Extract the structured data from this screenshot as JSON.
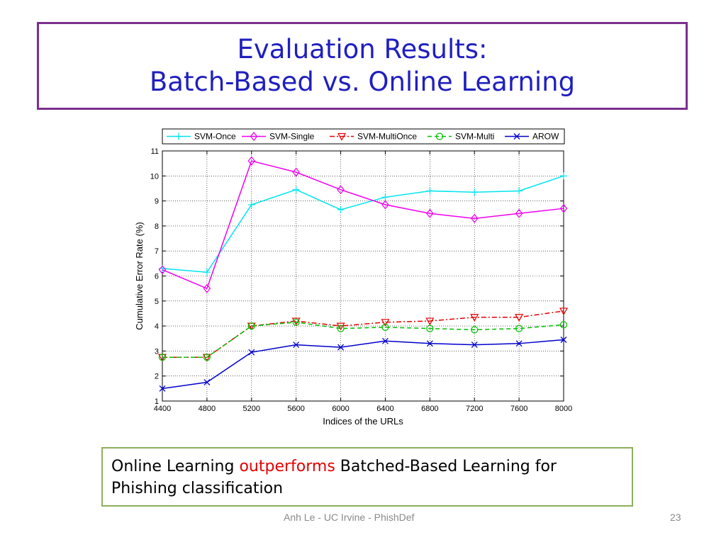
{
  "slide": {
    "title_line1": "Evaluation Results:",
    "title_line2": "Batch-Based vs. Online Learning",
    "note_before": "Online Learning ",
    "note_highlight": "outperforms",
    "note_after": " Batched-Based Learning for Phishing classification",
    "footer": "Anh Le - UC Irvine - PhishDef",
    "page_number": "23",
    "title_color": "#1f1fbf",
    "highlight_color": "#e60000"
  },
  "chart_data": {
    "type": "line",
    "title": "",
    "xlabel": "Indices of the URLs",
    "ylabel": "Cumulative Error Rate (%)",
    "xlim": [
      4400,
      8000
    ],
    "ylim": [
      1,
      11
    ],
    "x": [
      4400,
      4800,
      5200,
      5600,
      6000,
      6400,
      6800,
      7200,
      7600,
      8000
    ],
    "x_ticks": [
      "4400",
      "4800",
      "5200",
      "5600",
      "6000",
      "6400",
      "6800",
      "7200",
      "7600",
      "8000"
    ],
    "y_ticks": [
      "1",
      "2",
      "3",
      "4",
      "5",
      "6",
      "7",
      "8",
      "9",
      "10",
      "11"
    ],
    "grid": true,
    "legend_position": "top",
    "series": [
      {
        "name": "SVM-Once",
        "color": "#00e5ee",
        "marker": "plus",
        "dash": "solid",
        "values": [
          6.3,
          6.15,
          8.85,
          9.45,
          8.65,
          9.15,
          9.4,
          9.35,
          9.4,
          10.0
        ]
      },
      {
        "name": "SVM-Single",
        "color": "#ee00ee",
        "marker": "diamond",
        "dash": "solid",
        "values": [
          6.25,
          5.5,
          10.6,
          10.15,
          9.45,
          8.85,
          8.5,
          8.3,
          8.5,
          8.7
        ]
      },
      {
        "name": "SVM-MultiOnce",
        "color": "#e50000",
        "marker": "triangle-down",
        "dash": "dashdot",
        "values": [
          2.75,
          2.75,
          4.0,
          4.2,
          4.0,
          4.15,
          4.2,
          4.35,
          4.35,
          4.6
        ]
      },
      {
        "name": "SVM-Multi",
        "color": "#00c000",
        "marker": "circle",
        "dash": "dashed",
        "values": [
          2.75,
          2.75,
          4.0,
          4.15,
          3.9,
          3.95,
          3.9,
          3.85,
          3.9,
          4.05
        ]
      },
      {
        "name": "AROW",
        "color": "#0000cc",
        "marker": "x",
        "dash": "solid",
        "values": [
          1.5,
          1.75,
          2.95,
          3.25,
          3.15,
          3.4,
          3.3,
          3.25,
          3.3,
          3.45
        ]
      }
    ]
  }
}
